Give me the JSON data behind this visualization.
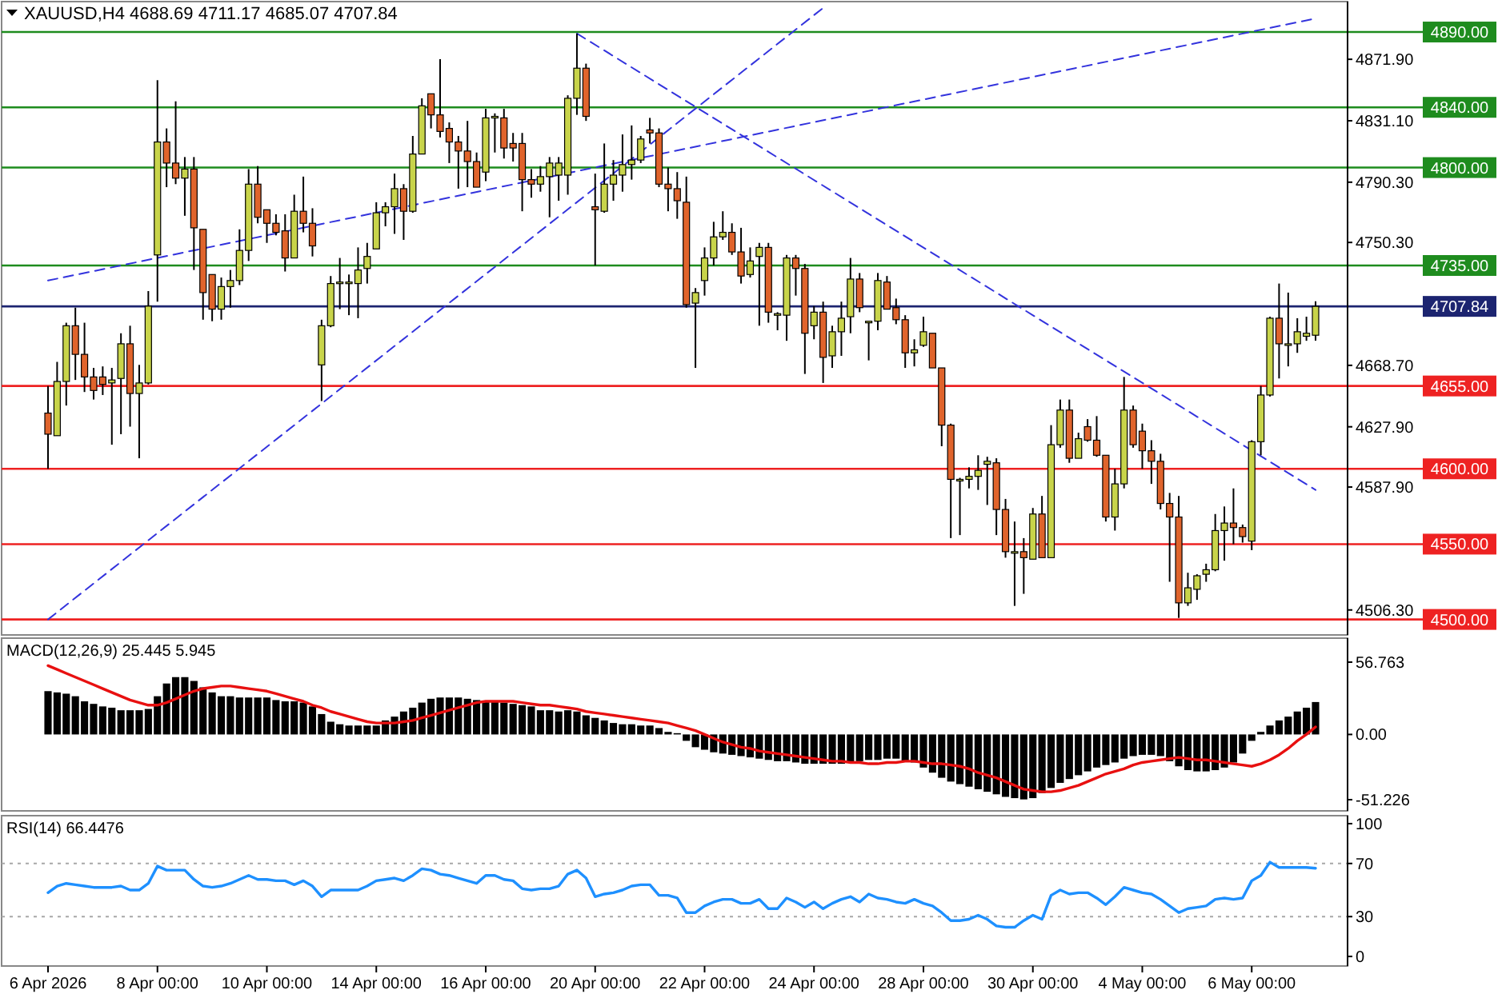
{
  "chart_data": [
    {
      "type": "candlestick",
      "title": "XAUUSD,H4 4688.69 4711.17 4685.07 4707.84",
      "tick_labels": "y",
      "ohlc": [
        [
          4637,
          4655,
          4600,
          4623
        ],
        [
          4622,
          4671,
          4622,
          4658
        ],
        [
          4658,
          4697,
          4642,
          4695
        ],
        [
          4695,
          4707,
          4659,
          4676
        ],
        [
          4676,
          4697,
          4651,
          4661
        ],
        [
          4661,
          4667,
          4646,
          4652
        ],
        [
          4661,
          4668,
          4649,
          4656
        ],
        [
          4657,
          4667,
          4616,
          4659
        ],
        [
          4660,
          4690,
          4623,
          4683
        ],
        [
          4683,
          4695,
          4628,
          4650
        ],
        [
          4650,
          4669,
          4607,
          4657
        ],
        [
          4657,
          4718,
          4656,
          4708
        ],
        [
          4742,
          4858,
          4711,
          4817
        ],
        [
          4817,
          4826,
          4787,
          4803
        ],
        [
          4803,
          4844,
          4789,
          4793
        ],
        [
          4793,
          4807,
          4768,
          4799
        ],
        [
          4799,
          4807,
          4732,
          4760
        ],
        [
          4759,
          4759,
          4699,
          4717
        ],
        [
          4729,
          4729,
          4698,
          4706
        ],
        [
          4706,
          4727,
          4699,
          4721
        ],
        [
          4721,
          4732,
          4707,
          4725
        ],
        [
          4725,
          4759,
          4722,
          4745
        ],
        [
          4745,
          4799,
          4738,
          4789
        ],
        [
          4789,
          4801,
          4763,
          4767
        ],
        [
          4772,
          4772,
          4750,
          4763
        ],
        [
          4763,
          4769,
          4755,
          4757
        ],
        [
          4758,
          4769,
          4731,
          4740
        ],
        [
          4740,
          4782,
          4740,
          4771
        ],
        [
          4771,
          4794,
          4757,
          4763
        ],
        [
          4763,
          4773,
          4741,
          4748
        ],
        [
          4669,
          4699,
          4645,
          4695
        ],
        [
          4695,
          4728,
          4694,
          4723
        ],
        [
          4723,
          4740,
          4706,
          4724
        ],
        [
          4724,
          4729,
          4702,
          4724
        ],
        [
          4723,
          4747,
          4700,
          4732
        ],
        [
          4733,
          4750,
          4723,
          4741
        ],
        [
          4746,
          4777,
          4746,
          4770
        ],
        [
          4770,
          4777,
          4761,
          4774
        ],
        [
          4774,
          4796,
          4756,
          4786
        ],
        [
          4786,
          4789,
          4752,
          4771
        ],
        [
          4771,
          4821,
          4770,
          4809
        ],
        [
          4809,
          4846,
          4809,
          4841
        ],
        [
          4849,
          4849,
          4826,
          4835
        ],
        [
          4835,
          4872,
          4820,
          4824
        ],
        [
          4826,
          4830,
          4803,
          4817
        ],
        [
          4817,
          4821,
          4786,
          4811
        ],
        [
          4811,
          4831,
          4787,
          4804
        ],
        [
          4804,
          4810,
          4787,
          4787
        ],
        [
          4797,
          4839,
          4791,
          4833
        ],
        [
          4833,
          4836,
          4810,
          4834
        ],
        [
          4833,
          4839,
          4806,
          4813
        ],
        [
          4816,
          4823,
          4804,
          4813
        ],
        [
          4816,
          4823,
          4771,
          4792
        ],
        [
          4792,
          4799,
          4780,
          4789
        ],
        [
          4789,
          4801,
          4784,
          4794
        ],
        [
          4794,
          4807,
          4767,
          4803
        ],
        [
          4795,
          4807,
          4778,
          4803
        ],
        [
          4795,
          4848,
          4782,
          4846
        ],
        [
          4846,
          4889,
          4835,
          4866
        ],
        [
          4866,
          4869,
          4831,
          4834
        ],
        [
          4774,
          4796,
          4735,
          4772
        ],
        [
          4771,
          4816,
          4770,
          4789
        ],
        [
          4789,
          4805,
          4778,
          4795
        ],
        [
          4795,
          4822,
          4784,
          4802
        ],
        [
          4802,
          4828,
          4792,
          4805
        ],
        [
          4805,
          4821,
          4803,
          4819
        ],
        [
          4825,
          4833,
          4816,
          4823
        ],
        [
          4823,
          4826,
          4787,
          4789
        ],
        [
          4789,
          4800,
          4771,
          4786
        ],
        [
          4786,
          4797,
          4766,
          4778
        ],
        [
          4777,
          4794,
          4707,
          4709
        ],
        [
          4710,
          4720,
          4667,
          4717
        ],
        [
          4725,
          4747,
          4715,
          4740
        ],
        [
          4740,
          4764,
          4735,
          4754
        ],
        [
          4754,
          4771,
          4752,
          4757
        ],
        [
          4757,
          4763,
          4742,
          4744
        ],
        [
          4744,
          4760,
          4723,
          4728
        ],
        [
          4729,
          4747,
          4727,
          4738
        ],
        [
          4741,
          4750,
          4695,
          4747
        ],
        [
          4747,
          4750,
          4697,
          4704
        ],
        [
          4703,
          4704,
          4692,
          4703
        ],
        [
          4702,
          4742,
          4685,
          4740
        ],
        [
          4740,
          4742,
          4715,
          4733
        ],
        [
          4733,
          4736,
          4663,
          4690
        ],
        [
          4695,
          4708,
          4686,
          4704
        ],
        [
          4704,
          4711,
          4657,
          4674
        ],
        [
          4675,
          4695,
          4667,
          4691
        ],
        [
          4691,
          4711,
          4675,
          4700
        ],
        [
          4701,
          4740,
          4690,
          4726
        ],
        [
          4726,
          4730,
          4704,
          4707
        ],
        [
          4698,
          4698,
          4672,
          4698
        ],
        [
          4698,
          4730,
          4692,
          4725
        ],
        [
          4724,
          4728,
          4706,
          4706
        ],
        [
          4707,
          4713,
          4696,
          4699
        ],
        [
          4699,
          4702,
          4667,
          4677
        ],
        [
          4677,
          4686,
          4668,
          4679
        ],
        [
          4682,
          4701,
          4681,
          4691
        ],
        [
          4690,
          4690,
          4667,
          4667
        ],
        [
          4667,
          4667,
          4615,
          4629
        ],
        [
          4629,
          4630,
          4554,
          4593
        ],
        [
          4593,
          4594,
          4556,
          4593
        ],
        [
          4593,
          4601,
          4587,
          4595
        ],
        [
          4595,
          4609,
          4586,
          4599
        ],
        [
          4603,
          4608,
          4576,
          4605
        ],
        [
          4604,
          4607,
          4556,
          4573
        ],
        [
          4573,
          4580,
          4541,
          4545
        ],
        [
          4545,
          4565,
          4509,
          4545
        ],
        [
          4545,
          4554,
          4517,
          4541
        ],
        [
          4540,
          4574,
          4540,
          4570
        ],
        [
          4570,
          4582,
          4541,
          4541
        ],
        [
          4541,
          4629,
          4541,
          4616
        ],
        [
          4616,
          4646,
          4614,
          4639
        ],
        [
          4639,
          4646,
          4604,
          4607
        ],
        [
          4607,
          4624,
          4607,
          4620
        ],
        [
          4628,
          4633,
          4618,
          4619
        ],
        [
          4619,
          4635,
          4608,
          4609
        ],
        [
          4609,
          4609,
          4565,
          4568
        ],
        [
          4568,
          4600,
          4559,
          4590
        ],
        [
          4590,
          4661,
          4587,
          4639
        ],
        [
          4639,
          4642,
          4614,
          4616
        ],
        [
          4625,
          4630,
          4600,
          4612
        ],
        [
          4612,
          4619,
          4590,
          4605
        ],
        [
          4605,
          4610,
          4573,
          4577
        ],
        [
          4577,
          4584,
          4525,
          4568
        ],
        [
          4568,
          4582,
          4501,
          4511
        ],
        [
          4511,
          4531,
          4509,
          4521
        ],
        [
          4520,
          4530,
          4513,
          4529
        ],
        [
          4530,
          4537,
          4525,
          4533
        ],
        [
          4533,
          4570,
          4532,
          4559
        ],
        [
          4559,
          4575,
          4539,
          4564
        ],
        [
          4564,
          4587,
          4550,
          4561
        ],
        [
          4561,
          4563,
          4551,
          4555
        ],
        [
          4552,
          4619,
          4546,
          4618
        ],
        [
          4618,
          4655,
          4609,
          4649
        ],
        [
          4649,
          4701,
          4648,
          4700
        ],
        [
          4700,
          4723,
          4660,
          4683
        ],
        [
          4683,
          4717,
          4668,
          4683
        ],
        [
          4683,
          4700,
          4677,
          4691
        ],
        [
          4688,
          4701,
          4685,
          4690
        ],
        [
          4688.69,
          4711.17,
          4685.07,
          4707.84
        ]
      ],
      "series": [
        {
          "type": "line",
          "color": "#3333dd",
          "line_style": "dashed",
          "values": [
            4500,
            null,
            null,
            null,
            null,
            null,
            null,
            null,
            null,
            null,
            null,
            null,
            null,
            null,
            null,
            null,
            null,
            null,
            null,
            null,
            null,
            null,
            null,
            null,
            null,
            null,
            null,
            null,
            null,
            null,
            null,
            null,
            null,
            null,
            null,
            null,
            null,
            null,
            null,
            null,
            null,
            null,
            null,
            null,
            null,
            null,
            null,
            null,
            null,
            null,
            null,
            null,
            null,
            null,
            null,
            null,
            null,
            null,
            null,
            null,
            null,
            null,
            null,
            null,
            null,
            null,
            null,
            null,
            null,
            null,
            null,
            null,
            null,
            null,
            null,
            null,
            null,
            null,
            null,
            null,
            null,
            null,
            null,
            null,
            null,
            4906,
            null,
            null,
            null,
            null,
            null,
            null,
            null,
            null,
            null,
            null,
            null,
            null,
            null,
            null,
            null,
            null,
            null,
            null,
            null,
            null,
            null,
            null,
            null,
            null,
            null,
            null,
            null,
            null,
            null,
            null,
            null,
            null,
            null,
            null,
            null,
            null,
            null,
            null,
            null,
            null,
            null,
            null,
            null,
            null,
            null,
            null,
            null,
            null,
            null,
            null,
            null,
            null,
            null,
            null
          ]
        },
        {
          "type": "line",
          "color": "#3333dd",
          "line_style": "dashed",
          "values": [
            4725,
            null,
            null,
            null,
            null,
            null,
            null,
            null,
            null,
            null,
            null,
            null,
            null,
            null,
            null,
            null,
            null,
            null,
            null,
            null,
            null,
            null,
            null,
            null,
            null,
            null,
            null,
            null,
            null,
            null,
            null,
            null,
            null,
            null,
            null,
            null,
            null,
            null,
            null,
            null,
            null,
            null,
            null,
            null,
            null,
            null,
            null,
            null,
            null,
            null,
            null,
            null,
            null,
            null,
            null,
            null,
            null,
            null,
            null,
            null,
            null,
            null,
            null,
            null,
            null,
            null,
            null,
            null,
            null,
            null,
            null,
            null,
            null,
            null,
            null,
            null,
            null,
            null,
            null,
            null,
            null,
            null,
            null,
            null,
            null,
            null,
            null,
            null,
            null,
            null,
            null,
            null,
            null,
            null,
            null,
            null,
            null,
            null,
            null,
            null,
            null,
            null,
            null,
            null,
            null,
            null,
            null,
            null,
            null,
            null,
            null,
            null,
            null,
            null,
            null,
            null,
            null,
            null,
            null,
            null,
            null,
            null,
            null,
            null,
            null,
            null,
            null,
            null,
            null,
            null,
            null,
            null,
            null,
            null,
            null,
            null,
            null,
            null,
            null,
            4899
          ]
        },
        {
          "type": "line",
          "color": "#3333dd",
          "line_style": "dashed",
          "values": [
            null,
            null,
            null,
            null,
            null,
            null,
            null,
            null,
            null,
            null,
            null,
            null,
            null,
            null,
            null,
            null,
            null,
            null,
            null,
            null,
            null,
            null,
            null,
            null,
            null,
            null,
            null,
            null,
            null,
            null,
            null,
            null,
            null,
            null,
            null,
            null,
            null,
            null,
            null,
            null,
            null,
            null,
            null,
            null,
            null,
            null,
            null,
            null,
            null,
            null,
            null,
            null,
            null,
            null,
            null,
            null,
            null,
            null,
            4889,
            null,
            null,
            null,
            null,
            null,
            null,
            null,
            null,
            null,
            null,
            null,
            null,
            null,
            null,
            null,
            null,
            null,
            null,
            null,
            null,
            null,
            null,
            null,
            null,
            null,
            null,
            null,
            null,
            null,
            null,
            null,
            null,
            null,
            null,
            null,
            null,
            null,
            null,
            null,
            null,
            null,
            null,
            null,
            null,
            null,
            null,
            null,
            null,
            null,
            null,
            null,
            null,
            null,
            null,
            null,
            null,
            null,
            null,
            null,
            null,
            null,
            null,
            null,
            null,
            null,
            null,
            null,
            null,
            null,
            null,
            null,
            null,
            null,
            null,
            null,
            null,
            null,
            null,
            null,
            null,
            4586
          ]
        }
      ],
      "ylim": [
        4489.7,
        4910.2
      ],
      "yticks": [
        {
          "value": 4871.9,
          "label": "4871.90"
        },
        {
          "value": 4831.1,
          "label": "4831.10"
        },
        {
          "value": 4790.3,
          "label": "4790.30"
        },
        {
          "value": 4750.3,
          "label": "4750.30"
        },
        {
          "value": 4668.7,
          "label": "4668.70"
        },
        {
          "value": 4627.9,
          "label": "4627.90"
        },
        {
          "value": 4587.9,
          "label": "4587.90"
        },
        {
          "value": 4506.3,
          "label": "4506.30"
        }
      ],
      "ref_lines": [
        {
          "axis": "y",
          "value": 4890,
          "label": "4890.00",
          "color": "#1e8c1e"
        },
        {
          "axis": "y",
          "value": 4840,
          "label": "4840.00",
          "color": "#1e8c1e"
        },
        {
          "axis": "y",
          "value": 4800,
          "label": "4800.00",
          "color": "#1e8c1e"
        },
        {
          "axis": "y",
          "value": 4735,
          "label": "4735.00",
          "color": "#1e8c1e"
        },
        {
          "axis": "y",
          "value": 4707.84,
          "label": "4707.84",
          "color": "#1c2470"
        },
        {
          "axis": "y",
          "value": 4655,
          "label": "4655.00",
          "color": "#ee2222"
        },
        {
          "axis": "y",
          "value": 4600,
          "label": "4600.00",
          "color": "#ee2222"
        },
        {
          "axis": "y",
          "value": 4550,
          "label": "4550.00",
          "color": "#ee2222"
        },
        {
          "axis": "y",
          "value": 4500,
          "label": "4500.00",
          "color": "#ee2222"
        }
      ]
    },
    {
      "type": "bar",
      "title": "MACD(12,26,9) 25.445 5.945",
      "tick_labels": "y",
      "series": [
        {
          "color": "#000000",
          "values": [
            34,
            33,
            32,
            30,
            26,
            24,
            22,
            21,
            19,
            19,
            19,
            20,
            30,
            40,
            45,
            45,
            42,
            37,
            33,
            30,
            30,
            29,
            29,
            29,
            29,
            27,
            26,
            26,
            25,
            22,
            16,
            10,
            8,
            7,
            7,
            7,
            7,
            11,
            14,
            18,
            21,
            25,
            28,
            29,
            29,
            29,
            28,
            27,
            26,
            26,
            25,
            24,
            23,
            22,
            19,
            19,
            18,
            19,
            18,
            15,
            13,
            11,
            9,
            8,
            8,
            7,
            7,
            5,
            2,
            1,
            -5,
            -10,
            -12,
            -14,
            -15,
            -16,
            -17,
            -18,
            -19,
            -20,
            -21,
            -21,
            -22,
            -23,
            -23,
            -23,
            -23,
            -23,
            -22,
            -21,
            -20,
            -20,
            -19,
            -19,
            -21,
            -22,
            -26,
            -30,
            -34,
            -37,
            -39,
            -41,
            -43,
            -45,
            -47,
            -49,
            -50,
            -51,
            -50,
            -46,
            -42,
            -38,
            -35,
            -32,
            -29,
            -26,
            -24,
            -22,
            -19,
            -17,
            -16,
            -16,
            -17,
            -21,
            -25,
            -28,
            -29,
            -29,
            -28,
            -26,
            -22,
            -15,
            -5,
            2,
            7,
            11,
            14,
            18,
            21,
            25.445
          ]
        },
        {
          "type": "line",
          "color": "#e81010",
          "values": [
            54,
            51,
            48,
            45,
            42,
            39,
            36,
            33,
            30,
            27,
            25,
            23,
            23,
            25,
            28,
            31,
            34,
            36,
            37,
            38,
            38,
            37,
            36,
            35,
            34,
            32,
            30,
            28,
            26,
            23,
            21,
            18,
            16,
            14,
            12,
            10,
            9,
            9,
            9,
            10,
            11,
            13,
            15,
            17,
            19,
            21,
            23,
            25,
            26,
            26,
            26,
            26,
            25,
            24,
            23,
            23,
            22,
            21,
            20,
            18,
            17,
            16,
            15,
            14,
            13,
            12,
            11,
            10,
            9,
            7,
            5,
            3,
            0,
            -3,
            -6,
            -8,
            -10,
            -11,
            -13,
            -14,
            -15,
            -16,
            -17,
            -18,
            -19,
            -20,
            -21,
            -21,
            -22,
            -22,
            -23,
            -23,
            -22,
            -22,
            -21,
            -21,
            -22,
            -23,
            -23,
            -24,
            -25,
            -27,
            -30,
            -32,
            -34,
            -37,
            -40,
            -43,
            -44,
            -45,
            -45,
            -44,
            -42,
            -40,
            -37,
            -34,
            -31,
            -29,
            -27,
            -24,
            -22,
            -21,
            -20,
            -19,
            -18,
            -19,
            -20,
            -20,
            -21,
            -22,
            -23,
            -24,
            -25,
            -23,
            -20,
            -16,
            -11,
            -5,
            0,
            5.945
          ]
        }
      ],
      "ylim": [
        -60,
        75.6
      ],
      "yticks": [
        56.763,
        {
          "value": 0,
          "label": "0.00"
        },
        -51.226
      ]
    },
    {
      "type": "line",
      "title": "RSI(14) 66.4476",
      "categories": [
        "6 Apr 2026",
        null,
        null,
        null,
        null,
        null,
        null,
        null,
        null,
        null,
        null,
        null,
        "8 Apr 00:00",
        null,
        null,
        null,
        null,
        null,
        null,
        null,
        null,
        null,
        null,
        null,
        "10 Apr 00:00",
        null,
        null,
        null,
        null,
        null,
        null,
        null,
        null,
        null,
        null,
        null,
        "14 Apr 00:00",
        null,
        null,
        null,
        null,
        null,
        null,
        null,
        null,
        null,
        null,
        null,
        "16 Apr 00:00",
        null,
        null,
        null,
        null,
        null,
        null,
        null,
        null,
        null,
        null,
        null,
        "20 Apr 00:00",
        null,
        null,
        null,
        null,
        null,
        null,
        null,
        null,
        null,
        null,
        null,
        "22 Apr 00:00",
        null,
        null,
        null,
        null,
        null,
        null,
        null,
        null,
        null,
        null,
        null,
        "24 Apr 00:00",
        null,
        null,
        null,
        null,
        null,
        null,
        null,
        null,
        null,
        null,
        null,
        "28 Apr 00:00",
        null,
        null,
        null,
        null,
        null,
        null,
        null,
        null,
        null,
        null,
        null,
        "30 Apr 00:00",
        null,
        null,
        null,
        null,
        null,
        null,
        null,
        null,
        null,
        null,
        null,
        "4 May 00:00",
        null,
        null,
        null,
        null,
        null,
        null,
        null,
        null,
        null,
        null,
        null,
        "6 May 00:00",
        null,
        null,
        null,
        null,
        null,
        null,
        null
      ],
      "series": [
        {
          "color": "#1e90ff",
          "values": [
            48,
            53,
            55,
            54,
            53,
            52,
            52,
            52,
            53,
            50,
            50,
            55,
            68,
            65,
            65,
            65,
            58,
            53,
            52,
            53,
            55,
            58,
            61,
            58,
            58,
            57,
            57,
            54,
            57,
            53,
            45,
            50,
            50,
            50,
            50,
            53,
            57,
            58,
            59,
            57,
            61,
            66,
            65,
            62,
            61,
            59,
            57,
            55,
            61,
            61,
            58,
            57,
            51,
            50,
            51,
            51,
            53,
            62,
            65,
            59,
            45,
            47,
            48,
            50,
            53,
            54,
            54,
            46,
            46,
            44,
            33,
            33,
            38,
            41,
            43,
            43,
            40,
            40,
            43,
            36,
            36,
            44,
            41,
            37,
            41,
            36,
            40,
            43,
            45,
            41,
            47,
            44,
            43,
            41,
            40,
            43,
            40,
            38,
            33,
            27,
            27,
            28,
            31,
            28,
            23,
            22,
            22,
            27,
            31,
            28,
            46,
            50,
            47,
            48,
            48,
            44,
            39,
            45,
            52,
            50,
            48,
            47,
            43,
            38,
            33,
            36,
            37,
            38,
            43,
            44,
            43,
            44,
            57,
            61,
            71,
            67,
            67,
            67,
            67,
            66.4476
          ]
        }
      ],
      "ylim": [
        -7.2,
        106
      ],
      "yticks": [
        100,
        70,
        30,
        0
      ],
      "ref_lines": [
        {
          "axis": "y",
          "value": 70,
          "color": "#a8a8a8",
          "line_style": "dotted"
        },
        {
          "axis": "y",
          "value": 30,
          "color": "#a8a8a8",
          "line_style": "dotted"
        }
      ]
    }
  ]
}
